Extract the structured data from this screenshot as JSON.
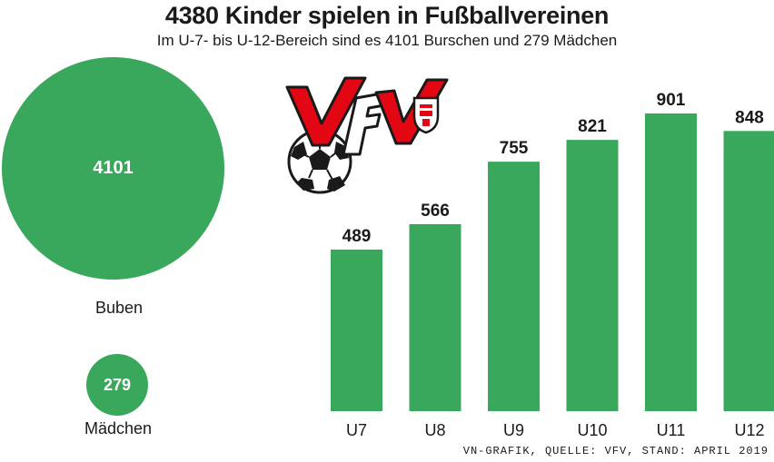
{
  "title": "4380 Kinder spielen in Fußballvereinen",
  "subtitle": "Im U-7- bis U-12-Bereich sind es 4101 Burschen und 279 Mädchen",
  "bubbles": {
    "boys": {
      "value": "4101",
      "label": "Buben"
    },
    "girls": {
      "value": "279",
      "label": "Mädchen"
    }
  },
  "logo": {
    "text": "VFV",
    "icon": "soccer-ball-icon"
  },
  "source": "VN-GRAFIK, QUELLE: VFV, STAND: APRIL 2019",
  "colors": {
    "bar": "#3aa85c",
    "logo_red": "#e30613"
  },
  "chart_data": [
    {
      "type": "bubble",
      "categories": [
        "Buben",
        "Mädchen"
      ],
      "values": [
        4101,
        279
      ]
    },
    {
      "type": "bar",
      "categories": [
        "U7",
        "U8",
        "U9",
        "U10",
        "U11",
        "U12"
      ],
      "values": [
        489,
        566,
        755,
        821,
        901,
        848
      ],
      "ylim": [
        0,
        901
      ],
      "grid": false
    }
  ]
}
